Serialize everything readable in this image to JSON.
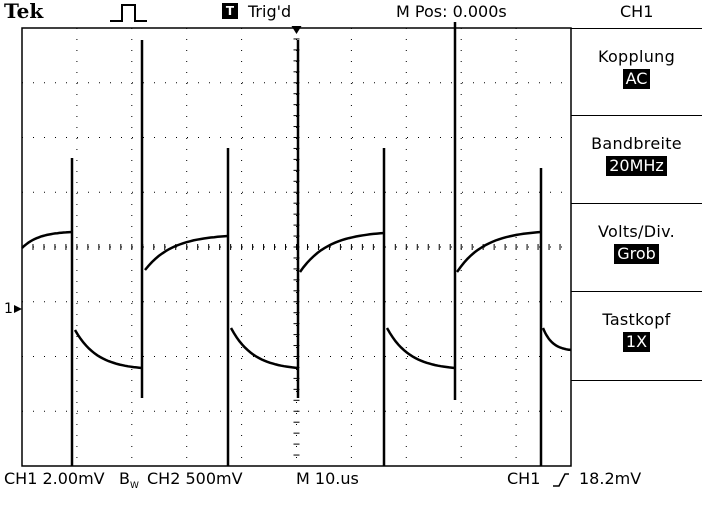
{
  "header": {
    "brand": "Tek",
    "trigger_badge": "T",
    "trigger_status": "Trig'd",
    "position": "M Pos: 0.000s",
    "channel": "CH1"
  },
  "menu": [
    {
      "label": "Kopplung",
      "value": "AC"
    },
    {
      "label": "Bandbreite",
      "value": "20MHz"
    },
    {
      "label": "Volts/Div.",
      "value": "Grob"
    },
    {
      "label": "Tastkopf",
      "value": "1X"
    }
  ],
  "marker": {
    "ch1": "1"
  },
  "footer": {
    "ch1_scale": "CH1  2.00mV",
    "ch1_bw": "B",
    "ch1_bw_sub": "W",
    "ch2_scale": "CH2  500mV",
    "time_base": "M  10.",
    "time_unit": "us",
    "trig_source": "CH1",
    "trig_slope": "⟋",
    "trig_level": "18.2mV"
  },
  "colors": {
    "background": "#ffffff",
    "trace": "#000000",
    "grid": "#000000"
  }
}
